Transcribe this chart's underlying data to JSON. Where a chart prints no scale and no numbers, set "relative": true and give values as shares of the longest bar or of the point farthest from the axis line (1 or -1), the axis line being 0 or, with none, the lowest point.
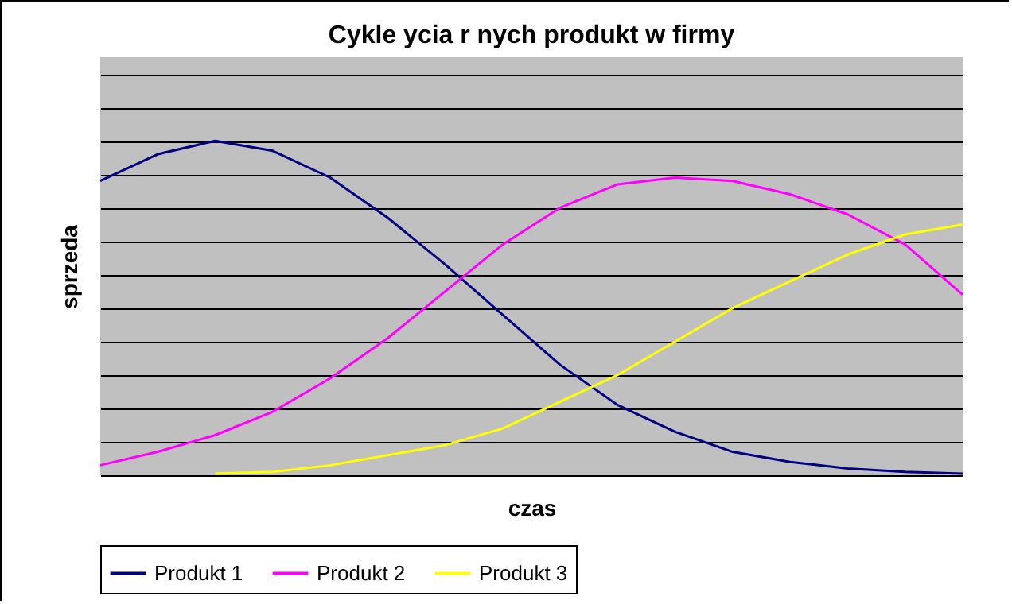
{
  "chart_data": {
    "type": "line",
    "title": "Cykle   ycia r    nych produkt  w firmy",
    "xlabel": "czas",
    "ylabel": "sprzeda",
    "relative": true,
    "grid": "y",
    "legend": "bottom",
    "line_style": "solid",
    "marker": "none",
    "categories": [
      null,
      null,
      null,
      null,
      null,
      null,
      null,
      null,
      null,
      null,
      null,
      null,
      null,
      null,
      null,
      null
    ],
    "series": [
      {
        "name": "Produkt 1",
        "color": "#000080",
        "values": [
          0.88,
          0.96,
          1.0,
          0.97,
          0.89,
          0.77,
          0.63,
          0.48,
          0.33,
          0.21,
          0.13,
          0.07,
          0.04,
          0.02,
          0.01,
          0.005
        ]
      },
      {
        "name": "Produkt 2",
        "color": "#ff00ff",
        "values": [
          0.03,
          0.07,
          0.12,
          0.19,
          0.29,
          0.41,
          0.55,
          0.69,
          0.8,
          0.87,
          0.89,
          0.88,
          0.84,
          0.78,
          0.69,
          0.54
        ]
      },
      {
        "name": "Produkt 3",
        "color": "#ffff00",
        "values": [
          null,
          null,
          0.005,
          0.01,
          0.03,
          0.06,
          0.09,
          0.14,
          0.22,
          0.3,
          0.4,
          0.5,
          0.58,
          0.66,
          0.72,
          0.75
        ]
      }
    ]
  }
}
